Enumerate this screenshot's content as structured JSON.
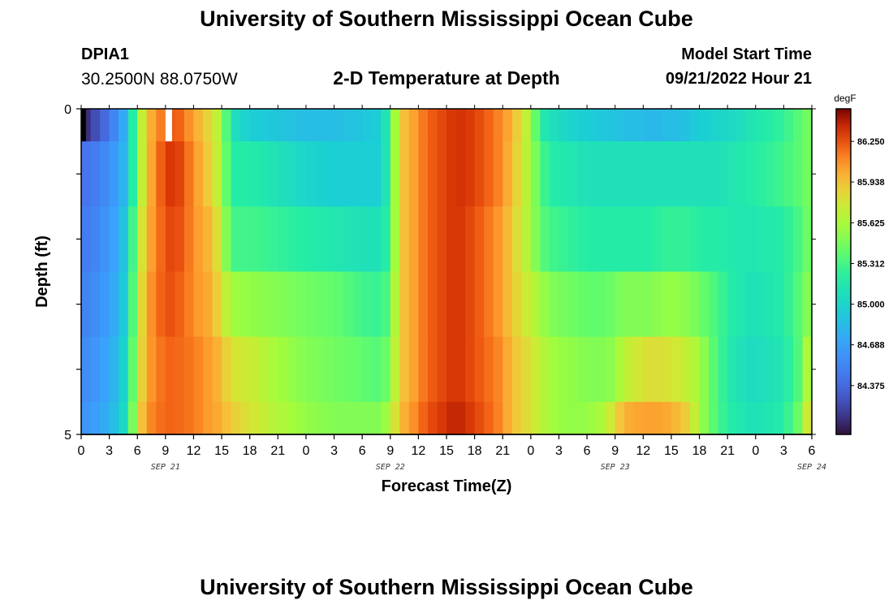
{
  "header": {
    "title": "University of Southern Mississippi Ocean Cube",
    "station_id": "DPIA1",
    "coords": "30.2500N  88.0750W",
    "plot_title": "2-D Temperature at Depth",
    "start_label": "Model Start Time",
    "start_value": "09/21/2022 Hour 21"
  },
  "footer": {
    "title": "University of Southern Mississippi Ocean Cube"
  },
  "chart_data": {
    "type": "heatmap",
    "xlabel": "Forecast Time(Z)",
    "ylabel": "Depth (ft)",
    "units": "degF",
    "x_tick_labels": [
      "0",
      "3",
      "6",
      "9",
      "12",
      "15",
      "18",
      "21",
      "0",
      "3",
      "6",
      "9",
      "12",
      "15",
      "18",
      "21",
      "0",
      "3",
      "6",
      "9",
      "12",
      "15",
      "18",
      "21",
      "0",
      "3",
      "6"
    ],
    "date_labels": [
      {
        "label": "SEP 21",
        "at_hour": 9
      },
      {
        "label": "SEP 22",
        "at_hour": 33
      },
      {
        "label": "SEP 23",
        "at_hour": 57
      },
      {
        "label": "SEP 24",
        "at_hour": 78
      }
    ],
    "x_range_hours": [
      0,
      78
    ],
    "y_tick_labels": [
      "0",
      "5"
    ],
    "y_range_ft": [
      0,
      5
    ],
    "depth_bands_ft": [
      0,
      0.5,
      1.5,
      2.5,
      3.5,
      4.5,
      5
    ],
    "colorbar": {
      "min": 84.0,
      "max": 86.5,
      "tick_labels": [
        "86.250",
        "85.938",
        "85.625",
        "85.312",
        "85.000",
        "84.688",
        "84.375"
      ],
      "tick_values": [
        86.25,
        85.938,
        85.625,
        85.312,
        85.0,
        84.688,
        84.375
      ]
    },
    "anchor_hours": [
      0,
      2,
      4,
      5,
      6,
      7,
      9,
      10,
      12,
      14,
      15,
      16,
      18,
      21,
      24,
      27,
      30,
      32,
      33,
      34,
      35,
      36,
      37,
      39,
      40,
      42,
      45,
      46,
      48,
      49,
      50,
      52,
      54,
      56,
      57,
      58,
      60,
      61,
      62,
      63,
      64,
      65,
      66,
      68,
      70,
      72,
      75,
      77,
      78
    ],
    "temperature_by_band": [
      [
        84.05,
        84.3,
        84.6,
        84.9,
        85.5,
        85.95,
        86.2,
        86.25,
        86.05,
        85.8,
        85.6,
        85.1,
        84.95,
        84.9,
        84.85,
        84.85,
        84.9,
        84.95,
        85.3,
        85.9,
        86.0,
        86.1,
        86.2,
        86.3,
        86.35,
        86.3,
        86.1,
        86.0,
        85.6,
        85.2,
        85.1,
        85.0,
        84.95,
        84.9,
        84.9,
        84.85,
        84.85,
        84.8,
        84.85,
        84.85,
        84.85,
        84.9,
        84.95,
        85.0,
        85.05,
        85.15,
        85.25,
        85.4,
        85.5
      ],
      [
        84.4,
        84.5,
        84.7,
        84.9,
        85.5,
        85.95,
        86.3,
        86.35,
        86.1,
        85.85,
        85.6,
        85.2,
        85.2,
        85.1,
        85.0,
        84.95,
        84.95,
        84.95,
        85.3,
        85.9,
        86.0,
        86.1,
        86.2,
        86.3,
        86.35,
        86.3,
        86.1,
        85.95,
        85.6,
        85.35,
        85.2,
        85.15,
        85.1,
        85.1,
        85.1,
        85.1,
        85.1,
        85.1,
        85.1,
        85.1,
        85.1,
        85.1,
        85.1,
        85.1,
        85.15,
        85.2,
        85.3,
        85.4,
        85.5
      ],
      [
        84.45,
        84.55,
        84.75,
        85.0,
        85.6,
        86.0,
        86.25,
        86.3,
        86.1,
        85.95,
        85.7,
        85.3,
        85.3,
        85.25,
        85.2,
        85.15,
        85.1,
        85.1,
        85.3,
        85.9,
        86.0,
        86.1,
        86.2,
        86.3,
        86.35,
        86.25,
        86.05,
        85.9,
        85.6,
        85.4,
        85.3,
        85.25,
        85.2,
        85.2,
        85.2,
        85.2,
        85.2,
        85.2,
        85.25,
        85.25,
        85.25,
        85.25,
        85.2,
        85.2,
        85.15,
        85.15,
        85.2,
        85.35,
        85.5
      ],
      [
        84.5,
        84.6,
        84.8,
        85.05,
        85.65,
        86.05,
        86.25,
        86.25,
        86.1,
        86.0,
        85.8,
        85.6,
        85.55,
        85.5,
        85.45,
        85.4,
        85.3,
        85.25,
        85.4,
        85.9,
        86.0,
        86.1,
        86.2,
        86.3,
        86.35,
        86.25,
        86.05,
        85.9,
        85.7,
        85.6,
        85.5,
        85.45,
        85.4,
        85.4,
        85.45,
        85.5,
        85.5,
        85.5,
        85.55,
        85.55,
        85.55,
        85.5,
        85.45,
        85.3,
        85.15,
        85.1,
        85.2,
        85.4,
        85.6
      ],
      [
        84.55,
        84.65,
        84.85,
        85.1,
        85.7,
        86.05,
        86.2,
        86.2,
        86.15,
        86.05,
        85.95,
        85.8,
        85.75,
        85.6,
        85.5,
        85.45,
        85.4,
        85.35,
        85.5,
        85.9,
        86.0,
        86.1,
        86.2,
        86.3,
        86.35,
        86.25,
        86.1,
        85.95,
        85.8,
        85.7,
        85.6,
        85.55,
        85.5,
        85.5,
        85.55,
        85.7,
        85.8,
        85.85,
        85.8,
        85.8,
        85.75,
        85.7,
        85.6,
        85.3,
        85.1,
        85.05,
        85.15,
        85.4,
        85.85
      ],
      [
        84.6,
        84.7,
        84.9,
        85.15,
        85.8,
        86.1,
        86.2,
        86.2,
        86.15,
        86.05,
        86.0,
        85.9,
        85.8,
        85.65,
        85.55,
        85.5,
        85.5,
        85.5,
        85.65,
        85.95,
        86.05,
        86.15,
        86.25,
        86.35,
        86.4,
        86.3,
        86.1,
        85.95,
        85.8,
        85.7,
        85.6,
        85.55,
        85.55,
        85.65,
        85.85,
        86.0,
        86.05,
        86.05,
        86.05,
        86.0,
        85.95,
        85.85,
        85.6,
        85.3,
        85.15,
        85.1,
        85.2,
        85.5,
        86.0
      ]
    ],
    "missing_cells": [
      {
        "band": 0,
        "from_hour": 0,
        "to_hour": 0.5,
        "fill": "#000000"
      },
      {
        "band": 0,
        "from_hour": 9.0,
        "to_hour": 9.7,
        "fill": "#ffffff"
      }
    ]
  }
}
